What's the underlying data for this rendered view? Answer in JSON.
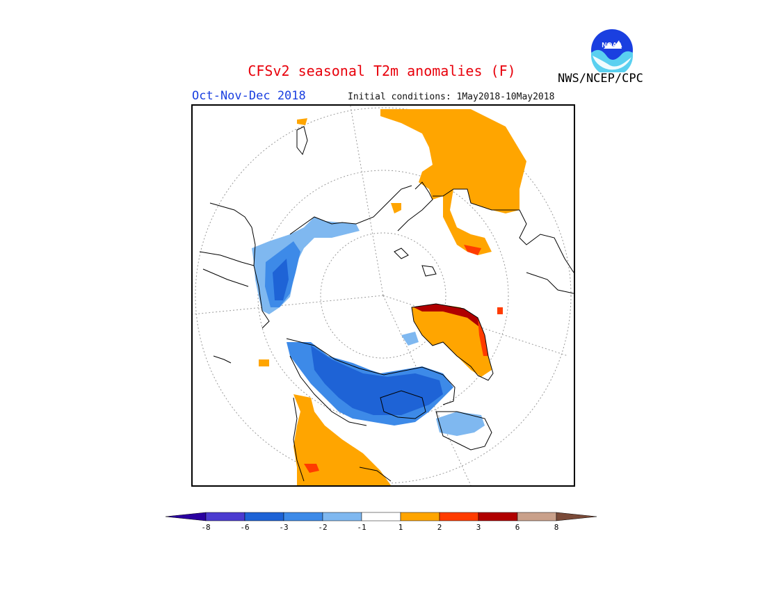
{
  "header": {
    "title": "CFSv2 seasonal T2m anomalies (F)",
    "season": "Oct-Nov-Dec 2018",
    "initial_conditions": "Initial conditions: 1May2018-10May2018",
    "agency": "NWS/NCEP/CPC",
    "logo_text": "NOAA"
  },
  "legend": {
    "tick_labels": [
      "-8",
      "-6",
      "-3",
      "-2",
      "-1",
      "1",
      "2",
      "3",
      "6",
      "8"
    ],
    "colors": [
      "#2a00a0",
      "#4b3bd0",
      "#1e63d6",
      "#3d8ae8",
      "#7fb8f0",
      "#ffffff",
      "#ffa500",
      "#ff3c00",
      "#b00000",
      "#c9a08a",
      "#7a4a38"
    ]
  },
  "map": {
    "projection": "north-polar-stereographic",
    "anomaly_regions": [
      {
        "region": "Siberia / Arctic Russia",
        "color": "#ffa500"
      },
      {
        "region": "Kara Sea coast",
        "color": "#ff3c00"
      },
      {
        "region": "Greenland rim",
        "color": "#b00000"
      },
      {
        "region": "Greenland",
        "color": "#ffa500"
      },
      {
        "region": "Alaska",
        "color": "#3d8ae8"
      },
      {
        "region": "Canada",
        "color": "#1e63d6"
      },
      {
        "region": "Hudson Bay / Quebec",
        "color": "#7fb8f0"
      },
      {
        "region": "Pacific Northwest / Western US",
        "color": "#ffa500"
      }
    ]
  }
}
